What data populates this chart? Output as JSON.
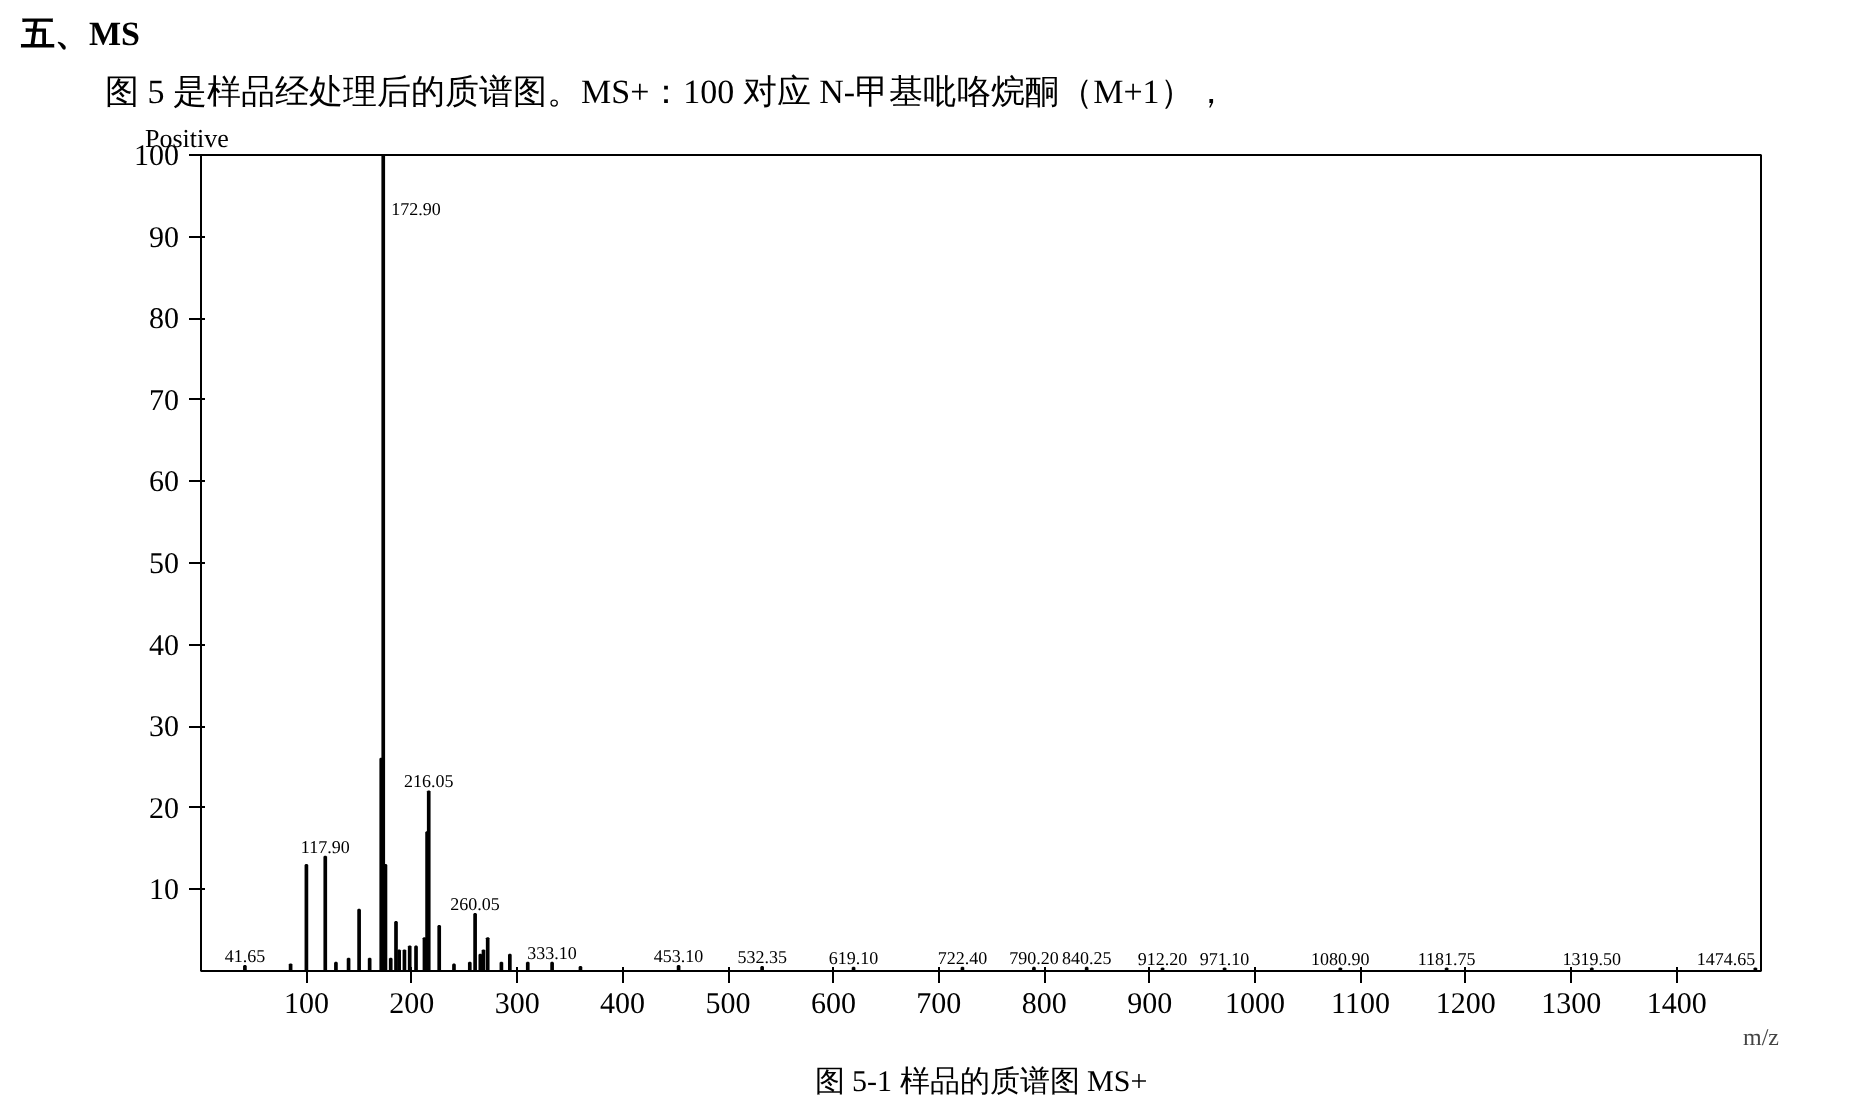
{
  "chart_data": {
    "type": "bar",
    "title": "五、MS",
    "subtitle": "图 5 是样品经处理后的质谱图。MS+：100 对应 N-甲基吡咯烷酮（M+1），",
    "ylabel": "Positive",
    "xlabel": "m/z",
    "x": [
      41.65,
      85,
      100,
      117.9,
      128,
      140,
      150,
      160,
      171,
      172.9,
      175,
      180,
      185,
      188,
      193,
      198,
      204,
      212,
      214.5,
      216.05,
      226,
      240,
      255,
      260.05,
      265,
      268,
      272,
      285,
      293,
      310,
      333.1,
      360,
      453.1,
      532.35,
      619.1,
      722.4,
      790.2,
      840.25,
      912.2,
      971.1,
      1080.9,
      1181.75,
      1319.5,
      1474.65
    ],
    "series": [
      {
        "color": "#000000",
        "values": [
          0.6,
          0.8,
          13,
          14,
          1,
          1.5,
          7.5,
          1.5,
          26,
          100,
          13,
          1.5,
          6,
          2.5,
          2.5,
          3,
          3,
          4,
          17,
          22,
          5.5,
          0.8,
          1,
          7,
          2,
          2.5,
          4,
          1,
          2,
          1,
          1,
          0.5,
          0.6,
          0.5,
          0.4,
          0.4,
          0.4,
          0.4,
          0.3,
          0.3,
          0.3,
          0.3,
          0.3,
          0.3
        ]
      }
    ],
    "xlim": [
      0,
      1480
    ],
    "ylim": [
      0,
      100
    ],
    "xticks": [
      100,
      200,
      300,
      400,
      500,
      600,
      700,
      800,
      900,
      1000,
      1100,
      1200,
      1300,
      1400
    ],
    "yticks": [
      10,
      20,
      30,
      40,
      50,
      60,
      70,
      80,
      90,
      100
    ],
    "grid": false,
    "annotations": [
      {
        "text": "41.65",
        "x": 41.65,
        "y": 0.6
      },
      {
        "text": "117.90",
        "x": 117.9,
        "y": 14
      },
      {
        "text": "172.90",
        "x": 172.9,
        "y": 97
      },
      {
        "text": "216.05",
        "x": 216.05,
        "y": 22
      },
      {
        "text": "260.05",
        "x": 260.05,
        "y": 7
      },
      {
        "text": "333.10",
        "x": 333.1,
        "y": 1
      },
      {
        "text": "453.10",
        "x": 453.1,
        "y": 0.6
      },
      {
        "text": "532.35",
        "x": 532.35,
        "y": 0.5
      },
      {
        "text": "619.10",
        "x": 619.1,
        "y": 0.4
      },
      {
        "text": "722.40",
        "x": 722.4,
        "y": 0.4
      },
      {
        "text": "790.20",
        "x": 790.2,
        "y": 0.4
      },
      {
        "text": "840.25",
        "x": 840.25,
        "y": 0.4
      },
      {
        "text": "912.20",
        "x": 912.2,
        "y": 0.3
      },
      {
        "text": "971.10",
        "x": 971.1,
        "y": 0.3
      },
      {
        "text": "1080.90",
        "x": 1080.9,
        "y": 0.3
      },
      {
        "text": "1181.75",
        "x": 1181.75,
        "y": 0.3
      },
      {
        "text": "1319.50",
        "x": 1319.5,
        "y": 0.3
      },
      {
        "text": "1474.65",
        "x": 1474.65,
        "y": 0.3
      },
      "图 5-1 样品的质谱图 MS+"
    ]
  }
}
